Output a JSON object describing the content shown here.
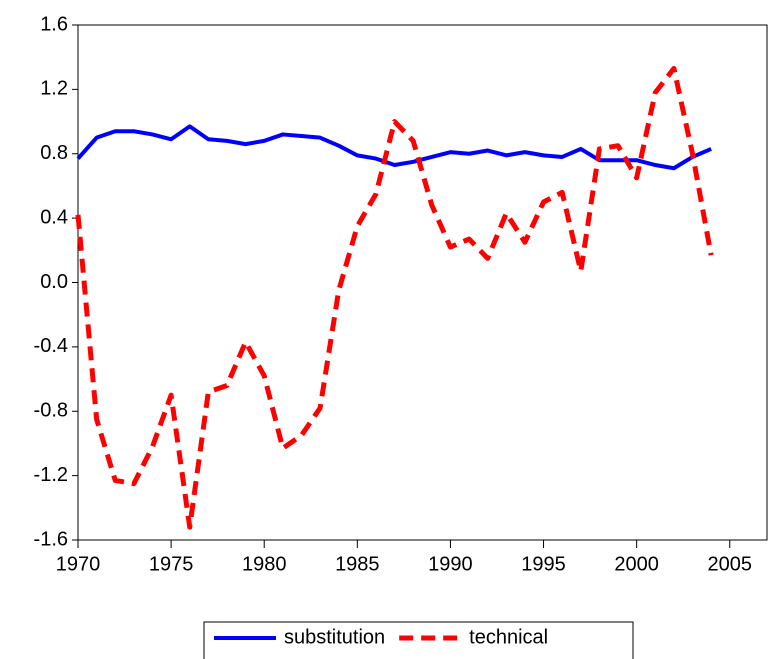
{
  "chart_data": {
    "type": "line",
    "x": [
      1970,
      1971,
      1972,
      1973,
      1974,
      1975,
      1976,
      1977,
      1978,
      1979,
      1980,
      1981,
      1982,
      1983,
      1984,
      1985,
      1986,
      1987,
      1988,
      1989,
      1990,
      1991,
      1992,
      1993,
      1994,
      1995,
      1996,
      1997,
      1998,
      1999,
      2000,
      2001,
      2002,
      2003,
      2004
    ],
    "series": [
      {
        "name": "substitution",
        "color": "#0000ff",
        "dashed": false,
        "values": [
          0.77,
          0.9,
          0.94,
          0.94,
          0.92,
          0.89,
          0.97,
          0.89,
          0.88,
          0.86,
          0.88,
          0.92,
          0.91,
          0.9,
          0.85,
          0.79,
          0.77,
          0.73,
          0.75,
          0.78,
          0.81,
          0.8,
          0.82,
          0.79,
          0.81,
          0.79,
          0.78,
          0.83,
          0.76,
          0.76,
          0.76,
          0.73,
          0.71,
          0.78,
          0.83
        ]
      },
      {
        "name": "technical",
        "color": "#ff0000",
        "dashed": true,
        "values": [
          0.42,
          -0.85,
          -1.23,
          -1.25,
          -1.02,
          -0.7,
          -1.52,
          -0.68,
          -0.64,
          -0.37,
          -0.58,
          -1.03,
          -0.95,
          -0.78,
          -0.05,
          0.35,
          0.55,
          1.0,
          0.88,
          0.48,
          0.22,
          0.27,
          0.15,
          0.43,
          0.25,
          0.5,
          0.56,
          0.07,
          0.83,
          0.85,
          0.65,
          1.18,
          1.33,
          0.8,
          0.17
        ]
      }
    ],
    "xlim": [
      1970,
      2007
    ],
    "xticks": [
      1970,
      1975,
      1980,
      1985,
      1990,
      1995,
      2000,
      2005
    ],
    "ylim": [
      -1.6,
      1.6
    ],
    "yticks": [
      1.6,
      1.2,
      0.8,
      0.4,
      {
        "value": 0,
        "label": "0.0"
      },
      -0.4,
      -0.8,
      -1.2,
      -1.6
    ],
    "legend": "bottom"
  }
}
